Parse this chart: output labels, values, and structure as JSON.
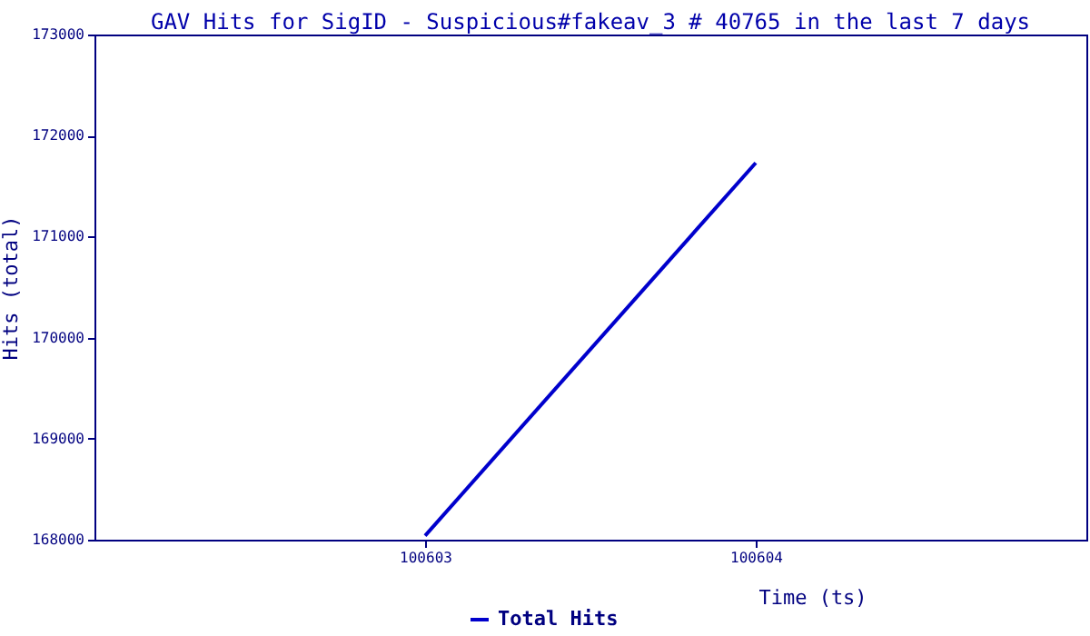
{
  "chart_data": {
    "type": "line",
    "title": "GAV Hits for SigID - Suspicious#fakeav_3 # 40765 in the last 7 days",
    "xlabel": "Time (ts)",
    "ylabel": "Hits (total)",
    "x": [
      100603,
      100604
    ],
    "series": [
      {
        "name": "Total Hits",
        "color": "#0000cc",
        "values": [
          168040,
          171730
        ]
      }
    ],
    "xlim": [
      100602,
      100605
    ],
    "xticks": [
      100603,
      100604
    ],
    "ylim": [
      168000,
      173000
    ],
    "yticks": [
      168000,
      169000,
      170000,
      171000,
      172000,
      173000
    ],
    "grid": false,
    "legend": "bottom",
    "marker": "none",
    "line_style": "solid"
  }
}
